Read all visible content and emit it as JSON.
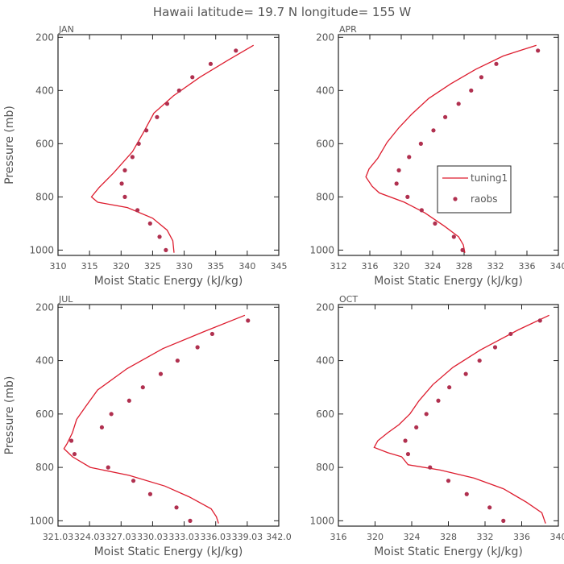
{
  "page_title": "Hawaii  latitude= 19.7 N longitude= 155 W",
  "colors": {
    "model_line": "#dd1c2e",
    "obs_marker": "#b0304f",
    "text": "#555555",
    "axes": "#222222"
  },
  "legend": {
    "model_label": "tuning1",
    "obs_label": "raobs"
  },
  "chart_data": [
    {
      "type": "line",
      "panel_label": "JAN",
      "xlabel": "Moist Static Energy (kJ/kg)",
      "ylabel": "Pressure (mb)",
      "xlim": [
        310,
        345
      ],
      "ylim": [
        1020,
        190
      ],
      "x_ticks": [
        310,
        315,
        320,
        325,
        330,
        335,
        340,
        345
      ],
      "x_tick_labels": [
        "310",
        "315",
        "320",
        "325",
        "330",
        "335",
        "340",
        "345"
      ],
      "y_ticks": [
        200,
        400,
        600,
        800,
        1000
      ],
      "y_tick_labels": [
        "200",
        "400",
        "600",
        "800",
        "1000"
      ],
      "series": [
        {
          "name": "tuning1",
          "points": [
            [
              341.0,
              230
            ],
            [
              337,
              285
            ],
            [
              332.5,
              350
            ],
            [
              328.3,
              420
            ],
            [
              325.2,
              485
            ],
            [
              323.5,
              560
            ],
            [
              321.8,
              630
            ],
            [
              318.8,
              710
            ],
            [
              316.5,
              765
            ],
            [
              315.3,
              800
            ],
            [
              316.3,
              820
            ],
            [
              321,
              840
            ],
            [
              325,
              880
            ],
            [
              327.3,
              925
            ],
            [
              328.2,
              965
            ],
            [
              328.4,
              1010
            ]
          ]
        },
        {
          "name": "raobs",
          "points": [
            [
              338.2,
              250
            ],
            [
              334.2,
              300
            ],
            [
              331.3,
              350
            ],
            [
              329.2,
              400
            ],
            [
              327.3,
              450
            ],
            [
              325.7,
              500
            ],
            [
              324,
              550
            ],
            [
              322.8,
              600
            ],
            [
              321.8,
              650
            ],
            [
              320.6,
              700
            ],
            [
              320.1,
              750
            ],
            [
              320.6,
              800
            ],
            [
              322.6,
              850
            ],
            [
              324.6,
              900
            ],
            [
              326.1,
              950
            ],
            [
              327.1,
              1000
            ]
          ]
        }
      ]
    },
    {
      "type": "line",
      "panel_label": "APR",
      "xlabel": "Moist Static Energy (kJ/kg)",
      "ylabel": "Pressure (mb)",
      "xlim": [
        312,
        340
      ],
      "ylim": [
        1020,
        190
      ],
      "x_ticks": [
        312,
        316,
        320,
        324,
        328,
        332,
        336,
        340
      ],
      "x_tick_labels": [
        "312",
        "316",
        "320",
        "324",
        "328",
        "332",
        "336",
        "340"
      ],
      "y_ticks": [
        200,
        400,
        600,
        800,
        1000
      ],
      "y_tick_labels": [
        "200",
        "400",
        "600",
        "800",
        "1000"
      ],
      "series": [
        {
          "name": "tuning1",
          "points": [
            [
              337.2,
              230
            ],
            [
              333,
              270
            ],
            [
              329.5,
              320
            ],
            [
              326.3,
              375
            ],
            [
              323.5,
              430
            ],
            [
              321.3,
              490
            ],
            [
              319.7,
              540
            ],
            [
              318.2,
              595
            ],
            [
              317,
              655
            ],
            [
              315.9,
              695
            ],
            [
              315.5,
              725
            ],
            [
              316.3,
              760
            ],
            [
              317.2,
              785
            ],
            [
              320.4,
              820
            ],
            [
              323,
              860
            ],
            [
              325.5,
              910
            ],
            [
              327.3,
              950
            ],
            [
              327.9,
              980
            ],
            [
              328.1,
              1010
            ]
          ]
        },
        {
          "name": "raobs",
          "points": [
            [
              337.4,
              250
            ],
            [
              332.1,
              300
            ],
            [
              330.2,
              350
            ],
            [
              328.9,
              400
            ],
            [
              327.3,
              450
            ],
            [
              325.6,
              500
            ],
            [
              324.1,
              550
            ],
            [
              322.5,
              600
            ],
            [
              321,
              650
            ],
            [
              319.7,
              700
            ],
            [
              319.4,
              750
            ],
            [
              320.8,
              800
            ],
            [
              322.6,
              850
            ],
            [
              324.3,
              900
            ],
            [
              326.7,
              950
            ],
            [
              327.8,
              1000
            ]
          ]
        }
      ]
    },
    {
      "type": "line",
      "panel_label": "JUL",
      "xlabel": "Moist Static Energy (kJ/kg)",
      "ylabel": "Pressure (mb)",
      "xlim": [
        321.03,
        342.03
      ],
      "ylim": [
        1020,
        190
      ],
      "x_ticks": [
        321.03,
        324.03,
        327.03,
        330.03,
        333.03,
        336.03,
        339.03,
        342.03
      ],
      "x_tick_labels": [
        "321.03",
        "324.03",
        "327.03",
        "330.03",
        "333.03",
        "336.03",
        "339.03",
        "342.0"
      ],
      "y_ticks": [
        200,
        400,
        600,
        800,
        1000
      ],
      "y_tick_labels": [
        "200",
        "400",
        "600",
        "800",
        "1000"
      ],
      "series": [
        {
          "name": "tuning1",
          "points": [
            [
              338.8,
              230
            ],
            [
              335,
              290
            ],
            [
              331,
              355
            ],
            [
              327.6,
              430
            ],
            [
              324.8,
              510
            ],
            [
              323.7,
              570
            ],
            [
              322.8,
              620
            ],
            [
              322.4,
              670
            ],
            [
              321.9,
              710
            ],
            [
              321.6,
              730
            ],
            [
              322.4,
              760
            ],
            [
              324.1,
              800
            ],
            [
              327.8,
              830
            ],
            [
              331.2,
              870
            ],
            [
              333.5,
              910
            ],
            [
              335.6,
              955
            ],
            [
              336.1,
              985
            ],
            [
              336.3,
              1010
            ]
          ]
        },
        {
          "name": "raobs",
          "points": [
            [
              339.1,
              250
            ],
            [
              335.7,
              300
            ],
            [
              334.3,
              350
            ],
            [
              332.4,
              400
            ],
            [
              330.8,
              450
            ],
            [
              329.1,
              500
            ],
            [
              327.8,
              550
            ],
            [
              326.1,
              600
            ],
            [
              325.2,
              650
            ],
            [
              322.3,
              700
            ],
            [
              322.6,
              750
            ],
            [
              325.8,
              800
            ],
            [
              328.2,
              850
            ],
            [
              329.8,
              900
            ],
            [
              332.3,
              950
            ],
            [
              333.6,
              1000
            ]
          ]
        }
      ]
    },
    {
      "type": "line",
      "panel_label": "OCT",
      "xlabel": "Moist Static Energy (kJ/kg)",
      "ylabel": "Pressure (mb)",
      "xlim": [
        316,
        340
      ],
      "ylim": [
        1020,
        190
      ],
      "x_ticks": [
        316,
        320,
        324,
        328,
        332,
        336,
        340
      ],
      "x_tick_labels": [
        "316",
        "320",
        "324",
        "328",
        "332",
        "336",
        "340"
      ],
      "y_ticks": [
        200,
        400,
        600,
        800,
        1000
      ],
      "y_tick_labels": [
        "200",
        "400",
        "600",
        "800",
        "1000"
      ],
      "series": [
        {
          "name": "tuning1",
          "points": [
            [
              339,
              230
            ],
            [
              335.6,
              285
            ],
            [
              331.5,
              360
            ],
            [
              328.5,
              425
            ],
            [
              326.3,
              490
            ],
            [
              324.8,
              550
            ],
            [
              323.8,
              600
            ],
            [
              322.6,
              640
            ],
            [
              321.4,
              670
            ],
            [
              320.3,
              700
            ],
            [
              319.9,
              725
            ],
            [
              321.4,
              745
            ],
            [
              322.9,
              760
            ],
            [
              323.6,
              790
            ],
            [
              327.1,
              810
            ],
            [
              330.8,
              840
            ],
            [
              334,
              880
            ],
            [
              336.5,
              930
            ],
            [
              338.2,
              970
            ],
            [
              338.6,
              1010
            ]
          ]
        },
        {
          "name": "raobs",
          "points": [
            [
              338,
              250
            ],
            [
              334.8,
              300
            ],
            [
              333.1,
              350
            ],
            [
              331.4,
              400
            ],
            [
              329.9,
              450
            ],
            [
              328.1,
              500
            ],
            [
              326.9,
              550
            ],
            [
              325.6,
              600
            ],
            [
              324.5,
              650
            ],
            [
              323.3,
              700
            ],
            [
              323.6,
              750
            ],
            [
              326,
              800
            ],
            [
              328,
              850
            ],
            [
              330,
              900
            ],
            [
              332.5,
              950
            ],
            [
              334,
              1000
            ]
          ]
        }
      ]
    }
  ]
}
